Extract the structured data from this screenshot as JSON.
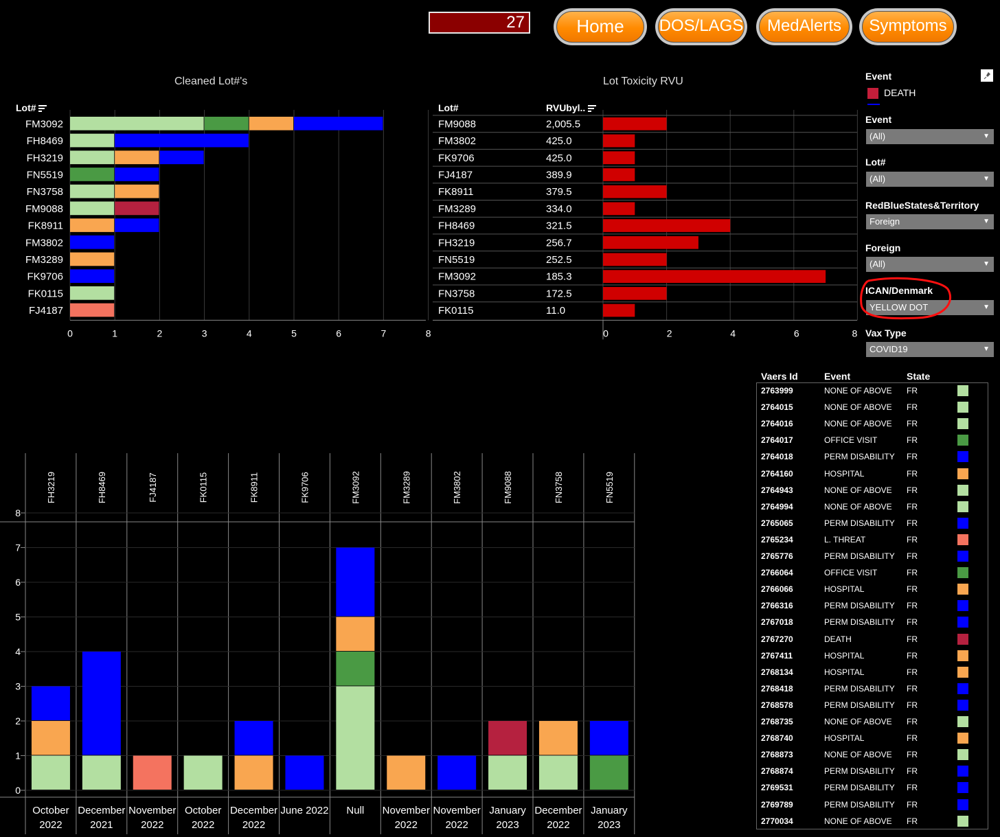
{
  "header": {
    "counter": "27",
    "nav": [
      {
        "label": "Home"
      },
      {
        "label": "DOS/LAGS"
      },
      {
        "label": "MedAlerts"
      },
      {
        "label": "Symptoms"
      }
    ]
  },
  "colors": {
    "none_of_above": "#b3dfa1",
    "office_visit": "#4a9a44",
    "hospital": "#f9a650",
    "perm_disability": "#0000ff",
    "l_threat": "#f4735f",
    "death": "#b5213f",
    "rvu_bar": "#d00000"
  },
  "cleaned_lots": {
    "title": "Cleaned Lot#'s",
    "col_header": "Lot#",
    "axis_ticks": [
      "0",
      "1",
      "2",
      "3",
      "4",
      "5",
      "6",
      "7",
      "8"
    ]
  },
  "toxicity": {
    "title": "Lot Toxicity RVU",
    "col_lot": "Lot#",
    "col_rvu": "RVUbyl..",
    "axis_ticks": [
      "0",
      "2",
      "4",
      "6",
      "8"
    ]
  },
  "filters": {
    "legend_title": "Event",
    "legend_item": "DEATH",
    "items": [
      {
        "label": "Event",
        "value": "(All)"
      },
      {
        "label": "Lot#",
        "value": "(All)"
      },
      {
        "label": "RedBlueStates&Territory",
        "value": "Foreign"
      },
      {
        "label": "Foreign",
        "value": "(All)"
      },
      {
        "label": "ICAN/Denmark",
        "value": "YELLOW DOT"
      },
      {
        "label": "Vax Type",
        "value": "COVID19"
      }
    ]
  },
  "chart_data": [
    {
      "type": "bar",
      "title": "Cleaned Lot#'s",
      "orientation": "horizontal-stacked",
      "categories": [
        "FM3092",
        "FH8469",
        "FH3219",
        "FN5519",
        "FN3758",
        "FM9088",
        "FK8911",
        "FM3802",
        "FM3289",
        "FK9706",
        "FK0115",
        "FJ4187"
      ],
      "series": [
        {
          "name": "NONE OF ABOVE",
          "color": "#b3dfa1",
          "values": [
            3,
            1,
            1,
            0,
            1,
            1,
            0,
            0,
            0,
            0,
            1,
            0
          ]
        },
        {
          "name": "OFFICE VISIT",
          "color": "#4a9a44",
          "values": [
            1,
            0,
            0,
            1,
            0,
            0,
            0,
            0,
            0,
            0,
            0,
            0
          ]
        },
        {
          "name": "HOSPITAL",
          "color": "#f9a650",
          "values": [
            1,
            0,
            1,
            0,
            1,
            0,
            1,
            0,
            1,
            0,
            0,
            0
          ]
        },
        {
          "name": "L. THREAT",
          "color": "#f4735f",
          "values": [
            0,
            0,
            0,
            0,
            0,
            0,
            0,
            0,
            0,
            0,
            0,
            1
          ]
        },
        {
          "name": "DEATH",
          "color": "#b5213f",
          "values": [
            0,
            0,
            0,
            0,
            0,
            1,
            0,
            0,
            0,
            0,
            0,
            0
          ]
        },
        {
          "name": "PERM DISABILITY",
          "color": "#0000ff",
          "values": [
            2,
            3,
            1,
            1,
            0,
            0,
            1,
            1,
            0,
            1,
            0,
            0
          ]
        }
      ],
      "xlim": [
        0,
        8
      ]
    },
    {
      "type": "bar",
      "title": "Lot Toxicity RVU",
      "orientation": "horizontal",
      "categories": [
        "FM9088",
        "FM3802",
        "FK9706",
        "FJ4187",
        "FK8911",
        "FM3289",
        "FH8469",
        "FH3219",
        "FN5519",
        "FM3092",
        "FN3758",
        "FK0115"
      ],
      "rvu_labels": [
        "2,005.5",
        "425.0",
        "425.0",
        "389.9",
        "379.5",
        "334.0",
        "321.5",
        "256.7",
        "252.5",
        "185.3",
        "172.5",
        "11.0"
      ],
      "values": [
        2,
        1,
        1,
        1,
        2,
        1,
        4,
        3,
        2,
        7,
        2,
        1
      ],
      "xlim": [
        0,
        8
      ]
    },
    {
      "type": "bar",
      "orientation": "vertical-stacked",
      "categories": [
        "FH3219",
        "FH8469",
        "FJ4187",
        "FK0115",
        "FK8911",
        "FK9706",
        "FM3092",
        "FM3289",
        "FM3802",
        "FM9088",
        "FN3758",
        "FN5519"
      ],
      "dates": [
        [
          "October",
          "2022"
        ],
        [
          "December",
          "2021"
        ],
        [
          "November",
          "2022"
        ],
        [
          "October",
          "2022"
        ],
        [
          "December",
          "2022"
        ],
        [
          "June 2022",
          ""
        ],
        [
          "Null",
          ""
        ],
        [
          "November",
          "2022"
        ],
        [
          "November",
          "2022"
        ],
        [
          "January",
          "2023"
        ],
        [
          "December",
          "2022"
        ],
        [
          "January",
          "2023"
        ]
      ],
      "series": [
        {
          "name": "NONE OF ABOVE",
          "color": "#b3dfa1",
          "values": [
            1,
            1,
            0,
            1,
            0,
            0,
            3,
            0,
            0,
            1,
            1,
            0
          ]
        },
        {
          "name": "OFFICE VISIT",
          "color": "#4a9a44",
          "values": [
            0,
            0,
            0,
            0,
            0,
            0,
            1,
            0,
            0,
            0,
            0,
            1
          ]
        },
        {
          "name": "HOSPITAL",
          "color": "#f9a650",
          "values": [
            1,
            0,
            0,
            0,
            1,
            0,
            1,
            1,
            0,
            0,
            1,
            0
          ]
        },
        {
          "name": "L. THREAT",
          "color": "#f4735f",
          "values": [
            0,
            0,
            1,
            0,
            0,
            0,
            0,
            0,
            0,
            0,
            0,
            0
          ]
        },
        {
          "name": "DEATH",
          "color": "#b5213f",
          "values": [
            0,
            0,
            0,
            0,
            0,
            0,
            0,
            0,
            0,
            1,
            0,
            0
          ]
        },
        {
          "name": "PERM DISABILITY",
          "color": "#0000ff",
          "values": [
            1,
            3,
            0,
            0,
            1,
            1,
            2,
            0,
            1,
            0,
            0,
            1
          ]
        }
      ],
      "ylim": [
        0,
        8
      ],
      "y_ticks": [
        "0",
        "1",
        "2",
        "3",
        "4",
        "5",
        "6",
        "7",
        "8"
      ]
    }
  ],
  "vaers_table": {
    "headers": [
      "Vaers Id",
      "Event",
      "State"
    ],
    "rows": [
      {
        "id": "2763999",
        "event": "NONE OF ABOVE",
        "state": "FR",
        "color": "#b3dfa1"
      },
      {
        "id": "2764015",
        "event": "NONE OF ABOVE",
        "state": "FR",
        "color": "#b3dfa1"
      },
      {
        "id": "2764016",
        "event": "NONE OF ABOVE",
        "state": "FR",
        "color": "#b3dfa1"
      },
      {
        "id": "2764017",
        "event": "OFFICE VISIT",
        "state": "FR",
        "color": "#4a9a44"
      },
      {
        "id": "2764018",
        "event": "PERM DISABILITY",
        "state": "FR",
        "color": "#0000ff"
      },
      {
        "id": "2764160",
        "event": "HOSPITAL",
        "state": "FR",
        "color": "#f9a650"
      },
      {
        "id": "2764943",
        "event": "NONE OF ABOVE",
        "state": "FR",
        "color": "#b3dfa1"
      },
      {
        "id": "2764994",
        "event": "NONE OF ABOVE",
        "state": "FR",
        "color": "#b3dfa1"
      },
      {
        "id": "2765065",
        "event": "PERM DISABILITY",
        "state": "FR",
        "color": "#0000ff"
      },
      {
        "id": "2765234",
        "event": "L. THREAT",
        "state": "FR",
        "color": "#f4735f"
      },
      {
        "id": "2765776",
        "event": "PERM DISABILITY",
        "state": "FR",
        "color": "#0000ff"
      },
      {
        "id": "2766064",
        "event": "OFFICE VISIT",
        "state": "FR",
        "color": "#4a9a44"
      },
      {
        "id": "2766066",
        "event": "HOSPITAL",
        "state": "FR",
        "color": "#f9a650"
      },
      {
        "id": "2766316",
        "event": "PERM DISABILITY",
        "state": "FR",
        "color": "#0000ff"
      },
      {
        "id": "2767018",
        "event": "PERM DISABILITY",
        "state": "FR",
        "color": "#0000ff"
      },
      {
        "id": "2767270",
        "event": "DEATH",
        "state": "FR",
        "color": "#b5213f"
      },
      {
        "id": "2767411",
        "event": "HOSPITAL",
        "state": "FR",
        "color": "#f9a650"
      },
      {
        "id": "2768134",
        "event": "HOSPITAL",
        "state": "FR",
        "color": "#f9a650"
      },
      {
        "id": "2768418",
        "event": "PERM DISABILITY",
        "state": "FR",
        "color": "#0000ff"
      },
      {
        "id": "2768578",
        "event": "PERM DISABILITY",
        "state": "FR",
        "color": "#0000ff"
      },
      {
        "id": "2768735",
        "event": "NONE OF ABOVE",
        "state": "FR",
        "color": "#b3dfa1"
      },
      {
        "id": "2768740",
        "event": "HOSPITAL",
        "state": "FR",
        "color": "#f9a650"
      },
      {
        "id": "2768873",
        "event": "NONE OF ABOVE",
        "state": "FR",
        "color": "#b3dfa1"
      },
      {
        "id": "2768874",
        "event": "PERM DISABILITY",
        "state": "FR",
        "color": "#0000ff"
      },
      {
        "id": "2769531",
        "event": "PERM DISABILITY",
        "state": "FR",
        "color": "#0000ff"
      },
      {
        "id": "2769789",
        "event": "PERM DISABILITY",
        "state": "FR",
        "color": "#0000ff"
      },
      {
        "id": "2770034",
        "event": "NONE OF ABOVE",
        "state": "FR",
        "color": "#b3dfa1"
      }
    ]
  },
  "icons": {
    "sort": "sort-icon",
    "pin": "pin-icon",
    "dropdown": "chevron-down-icon"
  }
}
